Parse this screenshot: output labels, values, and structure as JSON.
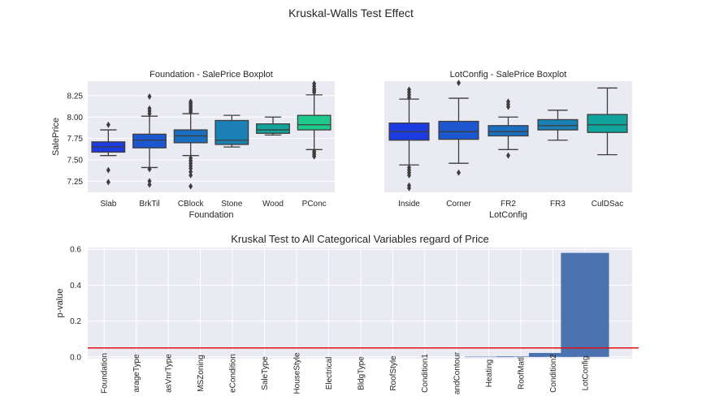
{
  "figure": {
    "suptitle": "Kruskal-Walls Test Effect"
  },
  "chart_data": [
    {
      "type": "box",
      "title": "Foundation - SalePrice Boxplot",
      "xlabel": "Foundation",
      "ylabel": "SalePrice",
      "ylim": [
        7.12,
        8.42
      ],
      "yticks": [
        7.25,
        7.5,
        7.75,
        8.0,
        8.25
      ],
      "ytick_labels": [
        "7.25",
        "7.50",
        "7.75",
        "8.00",
        "8.25"
      ],
      "boxes": [
        {
          "category": "Slab",
          "color": "#1c3be0",
          "whislo": 7.55,
          "q1": 7.59,
          "median": 7.65,
          "q3": 7.71,
          "whishi": 7.85,
          "fliers": [
            7.91,
            7.38,
            7.24
          ]
        },
        {
          "category": "BrkTil",
          "color": "#1c57cf",
          "whislo": 7.41,
          "q1": 7.64,
          "median": 7.73,
          "q3": 7.8,
          "whishi": 8.01,
          "fliers": [
            8.04,
            8.07,
            8.1,
            8.24,
            7.39,
            7.25,
            7.21
          ]
        },
        {
          "category": "CBlock",
          "color": "#1b6fc1",
          "whislo": 7.55,
          "q1": 7.7,
          "median": 7.78,
          "q3": 7.85,
          "whishi": 8.04,
          "fliers": [
            8.06,
            8.08,
            8.1,
            8.12,
            8.14,
            8.16,
            8.18,
            7.52,
            7.49,
            7.46,
            7.43,
            7.4,
            7.36,
            7.32,
            7.19
          ]
        },
        {
          "category": "Stone",
          "color": "#1a80b6",
          "whislo": 7.65,
          "q1": 7.68,
          "median": 7.73,
          "q3": 7.96,
          "whishi": 8.02,
          "fliers": []
        },
        {
          "category": "Wood",
          "color": "#12a39c",
          "whislo": 7.79,
          "q1": 7.81,
          "median": 7.85,
          "q3": 7.92,
          "whishi": 8.0,
          "fliers": []
        },
        {
          "category": "PConc",
          "color": "#1ec98d",
          "whislo": 7.62,
          "q1": 7.85,
          "median": 7.91,
          "q3": 8.02,
          "whishi": 8.26,
          "fliers": [
            8.29,
            8.31,
            8.33,
            8.36,
            8.39,
            7.6,
            7.58,
            7.56,
            7.54
          ]
        }
      ]
    },
    {
      "type": "box",
      "title": "LotConfig - SalePrice Boxplot",
      "xlabel": "LotConfig",
      "ylabel": "",
      "ylim": [
        7.12,
        8.42
      ],
      "boxes": [
        {
          "category": "Inside",
          "color": "#1c3be0",
          "whislo": 7.44,
          "q1": 7.73,
          "median": 7.83,
          "q3": 7.93,
          "whishi": 8.21,
          "fliers": [
            8.23,
            8.26,
            8.29,
            8.32,
            7.41,
            7.38,
            7.35,
            7.32,
            7.2,
            7.17
          ]
        },
        {
          "category": "Corner",
          "color": "#1c57cf",
          "whislo": 7.46,
          "q1": 7.74,
          "median": 7.83,
          "q3": 7.95,
          "whishi": 8.22,
          "fliers": [
            8.4,
            7.35
          ]
        },
        {
          "category": "FR2",
          "color": "#1b6fc1",
          "whislo": 7.62,
          "q1": 7.78,
          "median": 7.83,
          "q3": 7.9,
          "whishi": 8.0,
          "fliers": [
            8.12,
            8.15,
            8.18,
            7.55
          ]
        },
        {
          "category": "FR3",
          "color": "#1a80b6",
          "whislo": 7.73,
          "q1": 7.85,
          "median": 7.9,
          "q3": 7.97,
          "whishi": 8.08,
          "fliers": []
        },
        {
          "category": "CulDSac",
          "color": "#12a39c",
          "whislo": 7.56,
          "q1": 7.82,
          "median": 7.91,
          "q3": 8.03,
          "whishi": 8.34,
          "fliers": []
        }
      ]
    },
    {
      "type": "bar",
      "title": "Kruskal Test to All Categorical Variables regard of Price",
      "xlabel": "",
      "ylabel": "p-value",
      "ylim": [
        -0.01,
        0.61
      ],
      "yticks": [
        0.0,
        0.2,
        0.4,
        0.6
      ],
      "ytick_labels": [
        "0.0",
        "0.2",
        "0.4",
        "0.6"
      ],
      "bar_color": "#4c72b0",
      "hline": {
        "y": 0.05,
        "color": "#dd1111"
      },
      "categories": [
        "Foundation",
        "GarageType",
        "MasVnrType",
        "MSZoning",
        "SaleCondition",
        "SaleType",
        "HouseStyle",
        "Electrical",
        "BldgType",
        "RoofStyle",
        "Condition1",
        "LandContour",
        "Heating",
        "RoofMatl",
        "Condition2",
        "LotConfig"
      ],
      "visible_labels": [
        "Foundation",
        "arageType",
        "asVnrType",
        "MSZoning",
        "eCondition",
        "SaleType",
        "HouseStyle",
        "Electrical",
        "BldgType",
        "RoofStyle",
        "Condition1",
        "andContour",
        "Heating",
        "RoofMatl",
        "Condition2",
        "LotConfig"
      ],
      "values": [
        0.0,
        0.0,
        0.0,
        0.0,
        0.0,
        0.0,
        0.0,
        0.0,
        0.0,
        0.0,
        0.0,
        0.0,
        0.001,
        0.003,
        0.022,
        0.58
      ]
    }
  ]
}
